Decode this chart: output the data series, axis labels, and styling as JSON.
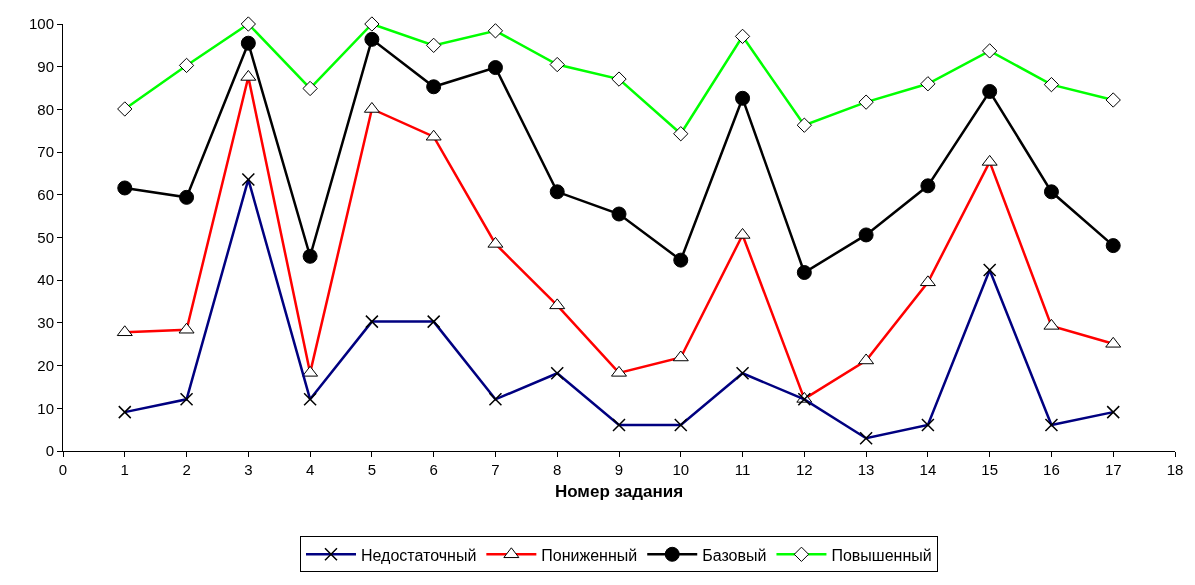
{
  "chart_data": {
    "type": "line",
    "xlabel": "Номер задания",
    "x": [
      1,
      2,
      3,
      4,
      5,
      6,
      7,
      8,
      9,
      10,
      11,
      12,
      13,
      14,
      15,
      16,
      17
    ],
    "series": [
      {
        "name": "Недостаточный",
        "color": "#000080",
        "marker": "cross",
        "values": [
          9.1,
          12.1,
          63.6,
          12.1,
          30.3,
          30.3,
          12.1,
          18.2,
          6.1,
          6.1,
          18.2,
          12.1,
          3,
          6.1,
          42.4,
          6.1,
          9.1
        ]
      },
      {
        "name": "Пониженный",
        "color": "#ff0000",
        "marker": "triangle",
        "values": [
          27.8,
          28.4,
          87.6,
          18.3,
          80.1,
          73.6,
          48.5,
          34.1,
          18.3,
          21.9,
          50.6,
          12.2,
          21.2,
          39.5,
          67.7,
          29.3,
          25.1
        ]
      },
      {
        "name": "Базовый",
        "color": "#000000",
        "marker": "circle",
        "values": [
          61.6,
          59.4,
          95.5,
          45.6,
          96.4,
          85.3,
          89.8,
          60.7,
          55.5,
          44.7,
          82.6,
          41.8,
          50.6,
          62.1,
          84.2,
          60.7,
          48.1
        ]
      },
      {
        "name": "Повышенный",
        "color": "#00ff00",
        "marker": "diamond",
        "values": [
          80.1,
          90.3,
          100,
          84.9,
          100,
          95,
          98.4,
          90.5,
          87.1,
          74.3,
          97.1,
          76.3,
          81.7,
          86,
          93.7,
          85.8,
          82.2
        ]
      }
    ],
    "xlim": [
      0,
      18
    ],
    "xticks": [
      0,
      1,
      2,
      3,
      4,
      5,
      6,
      7,
      8,
      9,
      10,
      11,
      12,
      13,
      14,
      15,
      16,
      17,
      18
    ],
    "ylim": [
      0,
      100
    ],
    "yticks": [
      0,
      10,
      20,
      30,
      40,
      50,
      60,
      70,
      80,
      90,
      100
    ],
    "legend": "bottom",
    "line_style": "solid"
  }
}
